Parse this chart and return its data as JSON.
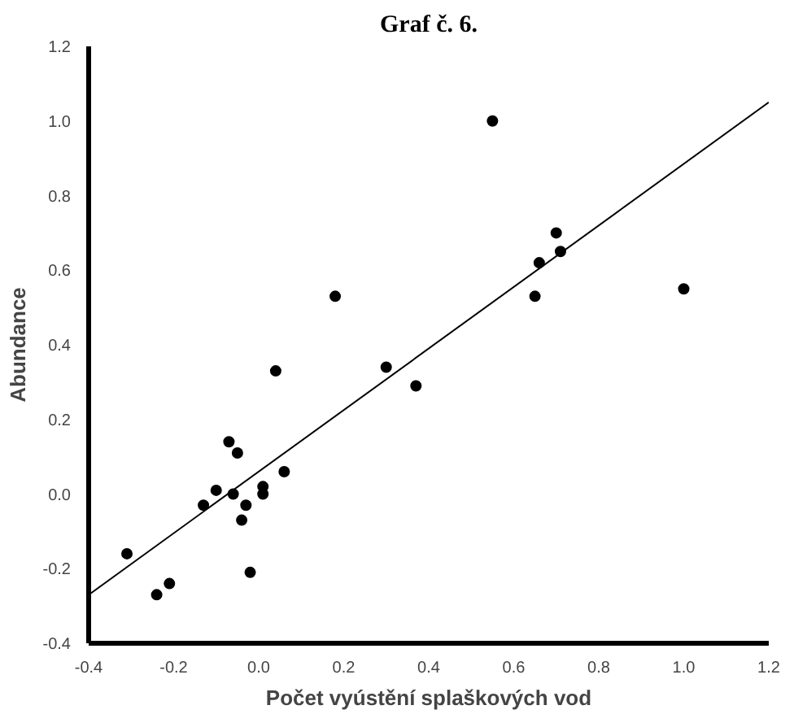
{
  "chart_data": {
    "type": "scatter",
    "title": "Graf č. 6.",
    "xlabel": "Počet vyústění splaškových vod",
    "ylabel": "Abundance",
    "xlim": [
      -0.4,
      1.2
    ],
    "ylim": [
      -0.4,
      1.2
    ],
    "xticks": [
      {
        "value": -0.4,
        "label": "-0.4"
      },
      {
        "value": -0.2,
        "label": "-0.2"
      },
      {
        "value": 0,
        "label": "0.0"
      },
      {
        "value": 0.2,
        "label": "0.2"
      },
      {
        "value": 0.4,
        "label": "0.4"
      },
      {
        "value": 0.6,
        "label": "0.6"
      },
      {
        "value": 0.8,
        "label": "0.8"
      },
      {
        "value": 1.0,
        "label": "1.0"
      },
      {
        "value": 1.2,
        "label": "1.2"
      }
    ],
    "yticks": [
      {
        "value": -0.4,
        "label": "-0.4"
      },
      {
        "value": -0.2,
        "label": "-0.2"
      },
      {
        "value": 0,
        "label": "0.0"
      },
      {
        "value": 0.2,
        "label": "0.2"
      },
      {
        "value": 0.4,
        "label": "0.4"
      },
      {
        "value": 0.6,
        "label": "0.6"
      },
      {
        "value": 0.8,
        "label": "0.8"
      },
      {
        "value": 1.0,
        "label": "1.0"
      },
      {
        "value": 1.2,
        "label": "1.2"
      }
    ],
    "grid": false,
    "series": [
      {
        "marker": "circle",
        "color": "#000000",
        "x": [
          -0.31,
          -0.24,
          -0.21,
          -0.13,
          -0.1,
          -0.07,
          -0.06,
          -0.05,
          -0.04,
          -0.03,
          -0.02,
          0.01,
          0.01,
          0.04,
          0.06,
          0.18,
          0.3,
          0.37,
          0.55,
          0.65,
          0.66,
          0.7,
          0.71,
          1.0
        ],
        "values": [
          -0.16,
          -0.27,
          -0.24,
          -0.03,
          0.01,
          0.14,
          0.0,
          0.11,
          -0.07,
          -0.03,
          -0.21,
          0.0,
          0.02,
          0.33,
          0.06,
          0.53,
          0.34,
          0.29,
          1.0,
          0.53,
          0.62,
          0.7,
          0.65,
          0.55
        ]
      },
      {
        "type": "line",
        "marker": "none",
        "color": "#000000",
        "x": [
          -0.4,
          1.2
        ],
        "values": [
          -0.27,
          1.05
        ]
      }
    ]
  }
}
